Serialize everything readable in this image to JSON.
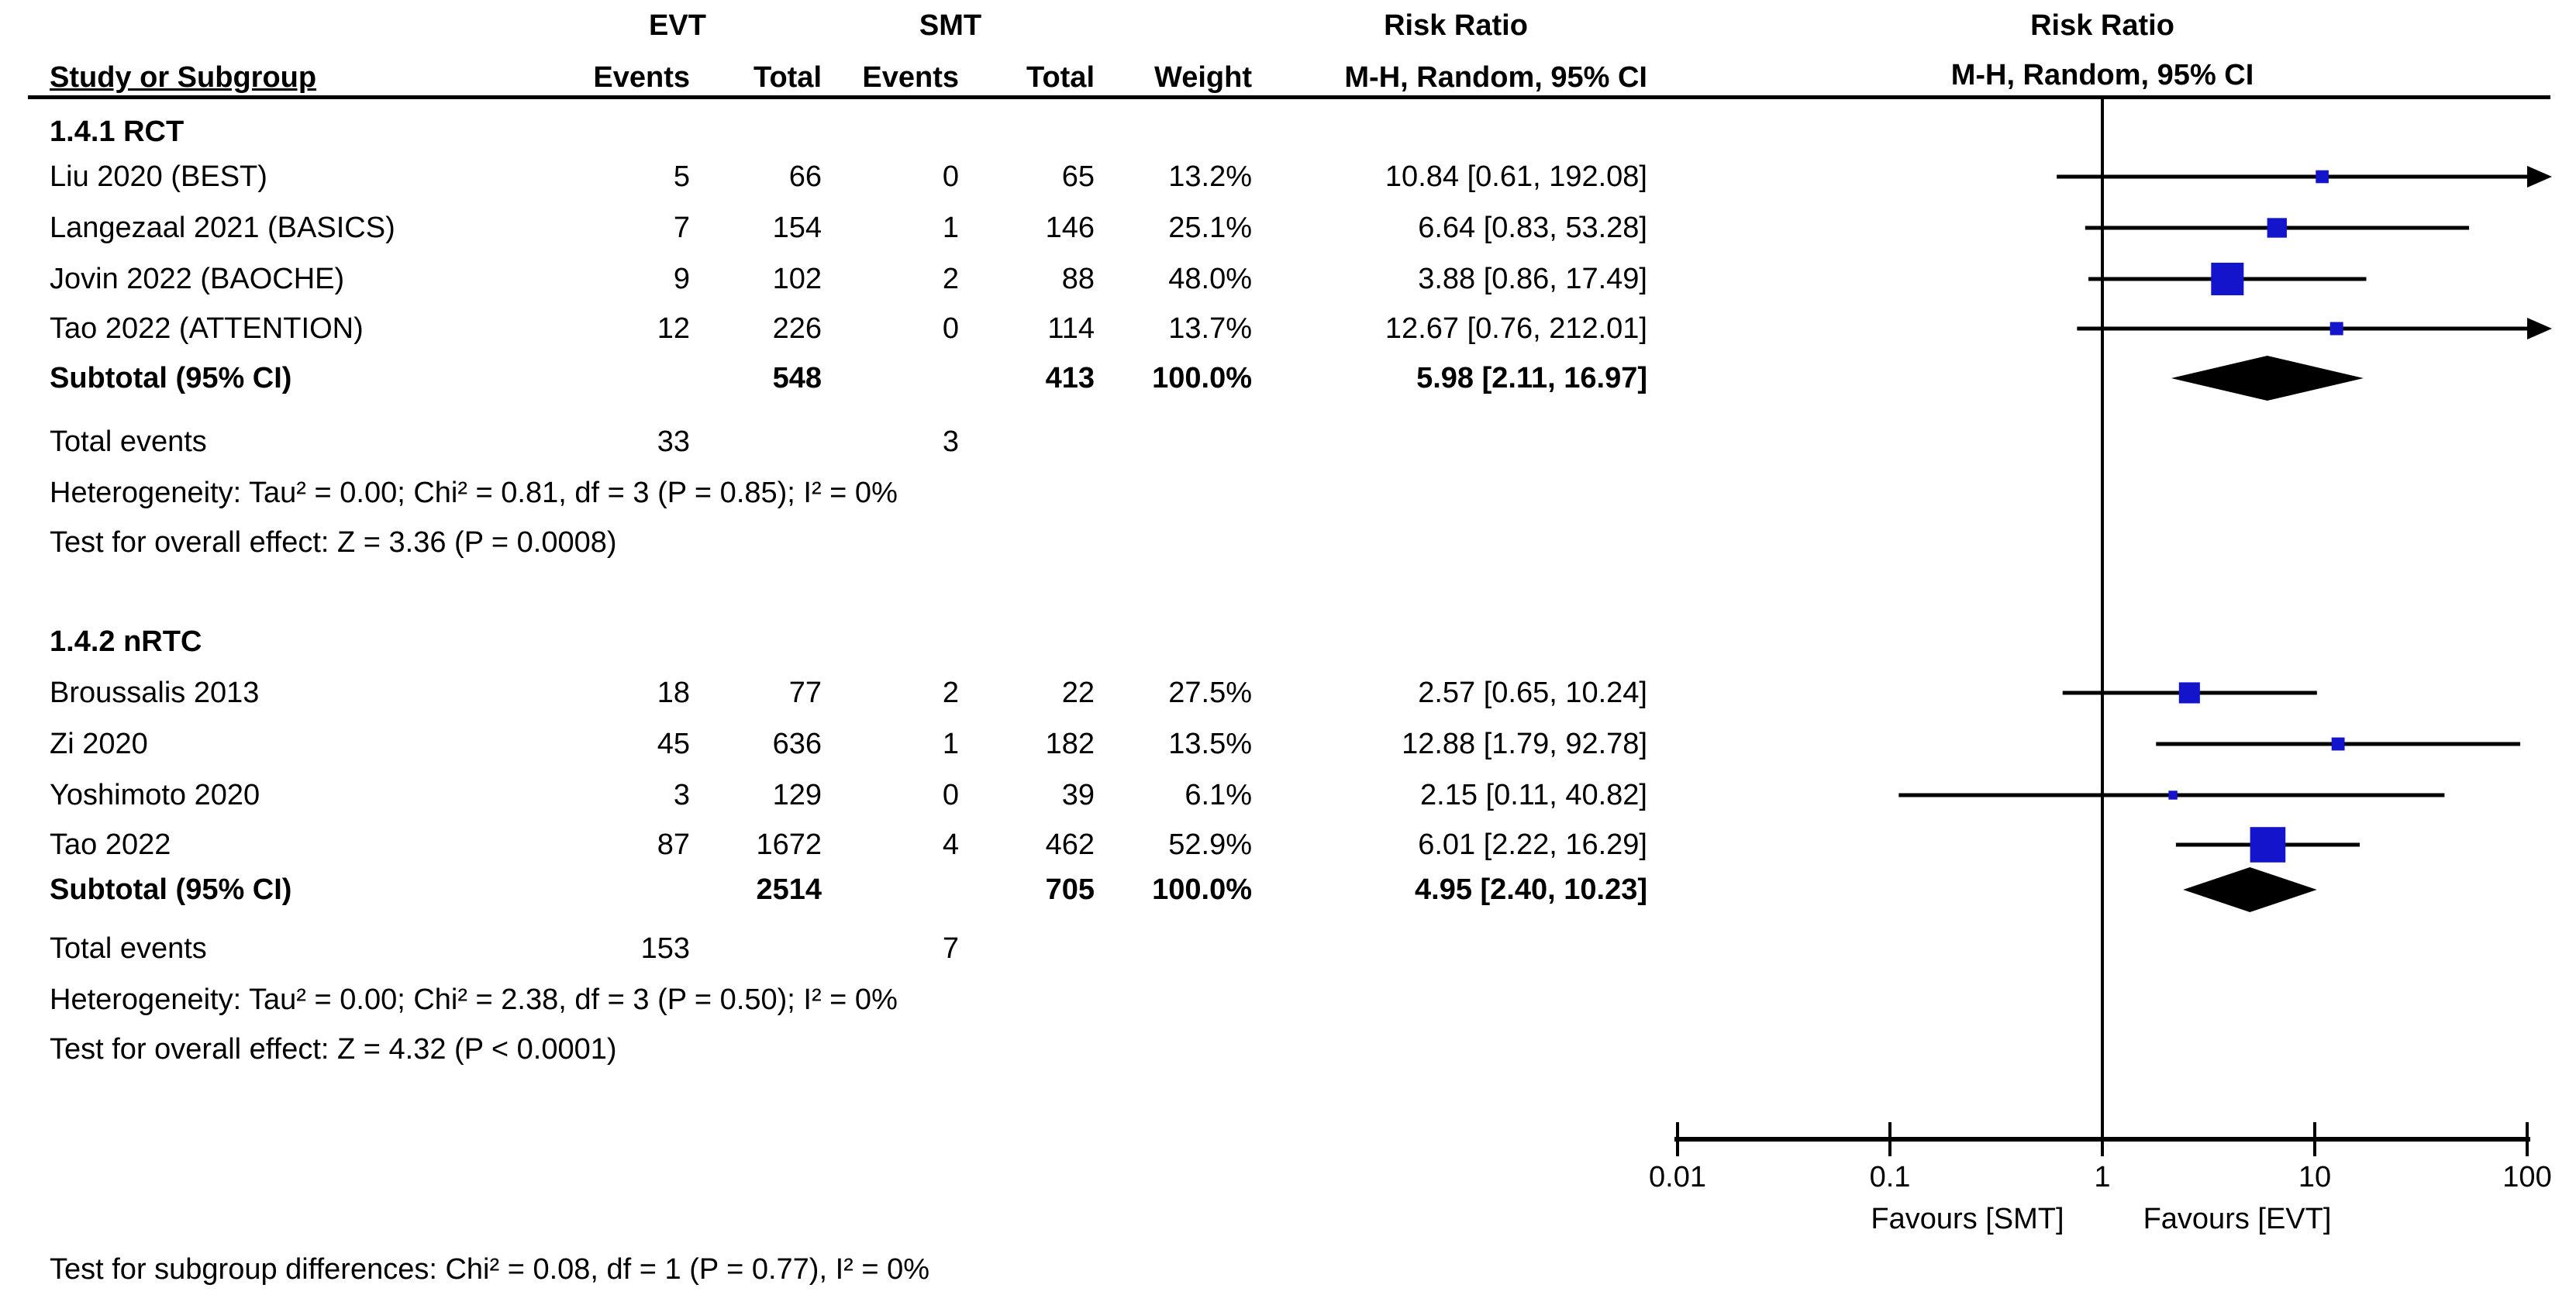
{
  "header": {
    "group1": "EVT",
    "group2": "SMT",
    "effect_col_title": "Risk Ratio",
    "effect_col_sub": "M-H, Random, 95% CI",
    "plot_col_title": "Risk Ratio",
    "plot_col_sub": "M-H, Random, 95% CI",
    "study_col": "Study or Subgroup",
    "events_col": "Events",
    "total_col": "Total",
    "weight_col": "Weight"
  },
  "colors": {
    "square": "#1414CD",
    "diamond": "#000000",
    "line": "#000000",
    "text": "#000000"
  },
  "chart_data": {
    "type": "forest",
    "effect_measure": "Risk Ratio",
    "method": "M-H, Random, 95% CI",
    "x_scale": "log10",
    "x_ticks": [
      0.01,
      0.1,
      1,
      10,
      100
    ],
    "x_tick_labels": [
      "0.01",
      "0.1",
      "1",
      "10",
      "100"
    ],
    "x_range": [
      0.01,
      100
    ],
    "favours_left": "Favours [SMT]",
    "favours_right": "Favours [EVT]",
    "sections": [
      {
        "label": "1.4.1 RCT",
        "studies": [
          {
            "label": "Liu 2020 (BEST)",
            "evt_events": "5",
            "evt_total": "66",
            "smt_events": "0",
            "smt_total": "65",
            "weight": "13.2%",
            "weight_pct": 13.2,
            "rr": 10.84,
            "ci_low": 0.61,
            "ci_high": 192.08,
            "rr_text": "10.84 [0.61, 192.08]"
          },
          {
            "label": "Langezaal 2021 (BASICS)",
            "evt_events": "7",
            "evt_total": "154",
            "smt_events": "1",
            "smt_total": "146",
            "weight": "25.1%",
            "weight_pct": 25.1,
            "rr": 6.64,
            "ci_low": 0.83,
            "ci_high": 53.28,
            "rr_text": "6.64 [0.83, 53.28]"
          },
          {
            "label": "Jovin 2022 (BAOCHE)",
            "evt_events": "9",
            "evt_total": "102",
            "smt_events": "2",
            "smt_total": "88",
            "weight": "48.0%",
            "weight_pct": 48.0,
            "rr": 3.88,
            "ci_low": 0.86,
            "ci_high": 17.49,
            "rr_text": "3.88 [0.86, 17.49]"
          },
          {
            "label": "Tao 2022 (ATTENTION)",
            "evt_events": "12",
            "evt_total": "226",
            "smt_events": "0",
            "smt_total": "114",
            "weight": "13.7%",
            "weight_pct": 13.7,
            "rr": 12.67,
            "ci_low": 0.76,
            "ci_high": 212.01,
            "rr_text": "12.67 [0.76, 212.01]"
          }
        ],
        "subtotal": {
          "label": "Subtotal (95% CI)",
          "evt_total": "548",
          "smt_total": "413",
          "weight": "100.0%",
          "rr": 5.98,
          "ci_low": 2.11,
          "ci_high": 16.97,
          "rr_text": "5.98 [2.11, 16.97]"
        },
        "total_events": {
          "label": "Total events",
          "evt": "33",
          "smt": "3"
        },
        "heterogeneity": "Heterogeneity: Tau² = 0.00; Chi² = 0.81, df = 3 (P = 0.85); I² = 0%",
        "overall_effect": "Test for overall effect: Z = 3.36 (P = 0.0008)"
      },
      {
        "label": "1.4.2 nRTC",
        "studies": [
          {
            "label": "Broussalis 2013",
            "evt_events": "18",
            "evt_total": "77",
            "smt_events": "2",
            "smt_total": "22",
            "weight": "27.5%",
            "weight_pct": 27.5,
            "rr": 2.57,
            "ci_low": 0.65,
            "ci_high": 10.24,
            "rr_text": "2.57 [0.65, 10.24]"
          },
          {
            "label": "Zi 2020",
            "evt_events": "45",
            "evt_total": "636",
            "smt_events": "1",
            "smt_total": "182",
            "weight": "13.5%",
            "weight_pct": 13.5,
            "rr": 12.88,
            "ci_low": 1.79,
            "ci_high": 92.78,
            "rr_text": "12.88 [1.79, 92.78]"
          },
          {
            "label": "Yoshimoto 2020",
            "evt_events": "3",
            "evt_total": "129",
            "smt_events": "0",
            "smt_total": "39",
            "weight": "6.1%",
            "weight_pct": 6.1,
            "rr": 2.15,
            "ci_low": 0.11,
            "ci_high": 40.82,
            "rr_text": "2.15 [0.11, 40.82]"
          },
          {
            "label": "Tao 2022",
            "evt_events": "87",
            "evt_total": "1672",
            "smt_events": "4",
            "smt_total": "462",
            "weight": "52.9%",
            "weight_pct": 52.9,
            "rr": 6.01,
            "ci_low": 2.22,
            "ci_high": 16.29,
            "rr_text": "6.01 [2.22, 16.29]"
          }
        ],
        "subtotal": {
          "label": "Subtotal (95% CI)",
          "evt_total": "2514",
          "smt_total": "705",
          "weight": "100.0%",
          "rr": 4.95,
          "ci_low": 2.4,
          "ci_high": 10.23,
          "rr_text": "4.95 [2.40, 10.23]"
        },
        "total_events": {
          "label": "Total events",
          "evt": "153",
          "smt": "7"
        },
        "heterogeneity": "Heterogeneity: Tau² = 0.00; Chi² = 2.38, df = 3 (P = 0.50); I² = 0%",
        "overall_effect": "Test for overall effect: Z = 4.32 (P < 0.0001)"
      }
    ],
    "subgroup_test": "Test for subgroup differences: Chi² = 0.08, df = 1 (P = 0.77), I² = 0%"
  }
}
